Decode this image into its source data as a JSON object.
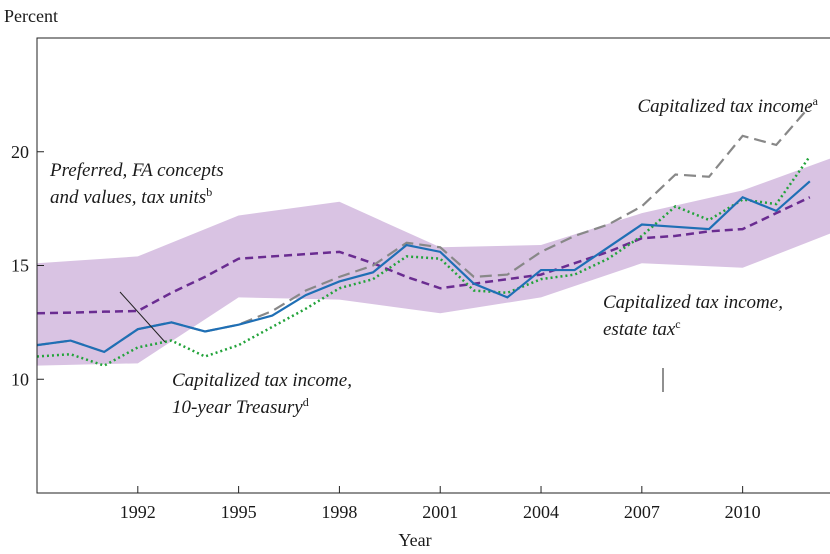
{
  "chart_data": {
    "type": "line",
    "y_label": "Percent",
    "x_label": "Year",
    "x": [
      1989,
      1990,
      1991,
      1992,
      1993,
      1994,
      1995,
      1996,
      1997,
      1998,
      1999,
      2000,
      2001,
      2002,
      2003,
      2004,
      2005,
      2006,
      2007,
      2008,
      2009,
      2010,
      2011,
      2012
    ],
    "xlim": [
      1989,
      2012.6
    ],
    "ylim": [
      5,
      25
    ],
    "xticks": [
      1992,
      1995,
      1998,
      2001,
      2004,
      2007,
      2010
    ],
    "yticks": [
      10,
      15,
      20
    ],
    "band": {
      "color": "#d9c3e3",
      "x": [
        1989,
        1992,
        1995,
        1998,
        2001,
        2004,
        2007,
        2010,
        2012.6
      ],
      "lower": [
        10.6,
        10.7,
        13.6,
        13.5,
        12.9,
        13.6,
        15.1,
        14.9,
        16.4
      ],
      "upper": [
        15.1,
        15.4,
        17.2,
        17.8,
        15.8,
        15.9,
        17.3,
        18.3,
        19.7
      ]
    },
    "series": [
      {
        "color": "#6a2c91",
        "dash": "8,5",
        "width": 2.5,
        "values": [
          12.9,
          12.93,
          12.97,
          13.0,
          13.8,
          14.5,
          15.3,
          15.4,
          15.5,
          15.6,
          15.1,
          14.5,
          14.0,
          14.2,
          14.4,
          14.6,
          15.1,
          15.6,
          16.2,
          16.3,
          16.5,
          16.6,
          17.3,
          18.0
        ]
      },
      {
        "color": "#888888",
        "dash": "12,6",
        "width": 2.2,
        "values": [
          11.5,
          11.7,
          11.2,
          12.2,
          12.5,
          12.1,
          12.4,
          13.0,
          13.9,
          14.5,
          15.0,
          16.0,
          15.8,
          14.5,
          14.6,
          15.6,
          16.3,
          16.8,
          17.6,
          19.0,
          18.9,
          20.7,
          20.3,
          22.0
        ]
      },
      {
        "color": "#22a33a",
        "dash": "2,3",
        "width": 2.5,
        "values": [
          11.0,
          11.1,
          10.6,
          11.4,
          11.7,
          11.0,
          11.5,
          12.3,
          13.1,
          14.0,
          14.4,
          15.4,
          15.3,
          13.9,
          13.8,
          14.4,
          14.6,
          15.3,
          16.3,
          17.6,
          17.0,
          17.9,
          17.7,
          19.8
        ]
      },
      {
        "color": "#1f6fb5",
        "dash": "",
        "width": 2.2,
        "values": [
          11.5,
          11.7,
          11.2,
          12.2,
          12.5,
          12.1,
          12.4,
          12.8,
          13.7,
          14.3,
          14.7,
          15.9,
          15.6,
          14.2,
          13.6,
          14.8,
          14.8,
          15.8,
          16.8,
          16.7,
          16.6,
          18.0,
          17.4,
          18.7
        ]
      }
    ],
    "annotations": [
      {
        "lines": [
          "Capitalized tax income"
        ],
        "sup": "a"
      },
      {
        "lines": [
          "Preferred, FA concepts",
          "and values, tax units"
        ],
        "sup": "b"
      },
      {
        "lines": [
          "Capitalized tax income,",
          "estate tax"
        ],
        "sup": "c"
      },
      {
        "lines": [
          "Capitalized tax income,",
          "10-year Treasury"
        ],
        "sup": "d"
      }
    ]
  }
}
